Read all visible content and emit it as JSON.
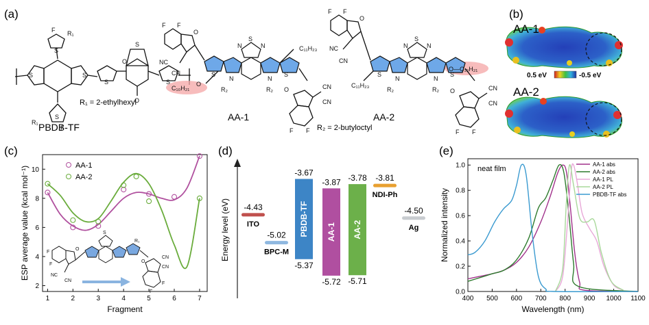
{
  "panels": {
    "a": {
      "letter": "(a)",
      "r1_note": "R₁ = 2-ethylhexyl",
      "r2_note": "R₂ = 2-butyloctyl",
      "compounds": [
        "PBDB-TF",
        "AA-1",
        "AA-2"
      ],
      "atoms": {
        "F": "F",
        "S": "S",
        "O": "O",
        "N": "N",
        "CN": "CN",
        "NC": "NC",
        "R1": "R₁",
        "R2": "R₂",
        "C11": "C₁₁H₂₃",
        "C10": "C₁₀H₂₁",
        "O_C10": "O—C₁₀H₂₁"
      }
    },
    "b": {
      "letter": "(b)",
      "top_label": "AA-1",
      "bottom_label": "AA-2",
      "scale_left": "0.5 eV",
      "scale_right": "-0.5 eV"
    },
    "c": {
      "letter": "(c)",
      "chart_data": {
        "type": "scatter",
        "xlabel": "Fragment",
        "ylabel": "ESP average value (kcal mol⁻¹)",
        "xlim": [
          0.8,
          7.3
        ],
        "ylim": [
          1.6,
          11.0
        ],
        "xticks": [
          1,
          2,
          3,
          4,
          5,
          6,
          7
        ],
        "yticks": [
          2,
          4,
          6,
          8,
          10
        ],
        "legend_position": "top-left",
        "series": [
          {
            "name": "AA-1",
            "color": "#b0509e",
            "points": [
              [
                1,
                8.4
              ],
              [
                2,
                6.0
              ],
              [
                3,
                6.1
              ],
              [
                4,
                8.6
              ],
              [
                5,
                8.3
              ],
              [
                6,
                8.1
              ],
              [
                7,
                10.9
              ]
            ],
            "curve": [
              [
                1,
                8.4
              ],
              [
                1.5,
                6.9
              ],
              [
                2,
                6.1
              ],
              [
                2.5,
                5.8
              ],
              [
                3,
                6.2
              ],
              [
                3.5,
                7.1
              ],
              [
                4,
                8.0
              ],
              [
                4.5,
                8.4
              ],
              [
                5,
                8.3
              ],
              [
                5.5,
                8.0
              ],
              [
                6,
                7.9
              ],
              [
                6.5,
                8.7
              ],
              [
                7,
                10.9
              ]
            ]
          },
          {
            "name": "AA-2",
            "color": "#6aac3c",
            "points": [
              [
                1,
                9.0
              ],
              [
                2,
                6.5
              ],
              [
                3,
                6.4
              ],
              [
                4,
                8.9
              ],
              [
                4.5,
                9.5
              ],
              [
                5,
                7.8
              ],
              [
                7,
                8.0
              ]
            ],
            "curve": [
              [
                1,
                9.0
              ],
              [
                1.5,
                8.2
              ],
              [
                2,
                7.0
              ],
              [
                2.5,
                6.4
              ],
              [
                3,
                6.6
              ],
              [
                3.5,
                7.8
              ],
              [
                4,
                9.1
              ],
              [
                4.5,
                9.7
              ],
              [
                5,
                9.0
              ],
              [
                5.5,
                7.2
              ],
              [
                6,
                4.8
              ],
              [
                6.5,
                3.3
              ],
              [
                7,
                8.0
              ]
            ]
          }
        ]
      }
    },
    "d": {
      "letter": "(d)",
      "chart_data": {
        "type": "bar",
        "ylabel": "Energy level (eV)",
        "ylim": [
          -6.2,
          -3.3
        ],
        "levels": [
          {
            "name": "ITO",
            "value": -4.43,
            "label": "-4.43",
            "color": "#c0504d"
          },
          {
            "name": "BPC-M",
            "value": -5.02,
            "label": "-5.02",
            "color": "#8fb8e0"
          },
          {
            "name": "NDI-Ph",
            "value": -3.81,
            "label": "-3.81",
            "color": "#e8a030"
          },
          {
            "name": "Ag",
            "value": -4.5,
            "label": "-4.50",
            "color": "#c8ccd0"
          }
        ],
        "bars": [
          {
            "name": "PBDB-TF",
            "top": -3.67,
            "bottom": -5.37,
            "top_label": "-3.67",
            "bottom_label": "-5.37",
            "color": "#3d85c6"
          },
          {
            "name": "AA-1",
            "top": -3.87,
            "bottom": -5.72,
            "top_label": "-3.87",
            "bottom_label": "-5.72",
            "color": "#b04fa0"
          },
          {
            "name": "AA-2",
            "top": -3.78,
            "bottom": -5.71,
            "top_label": "-3.78",
            "bottom_label": "-5.71",
            "color": "#6cb04a"
          }
        ]
      }
    },
    "e": {
      "letter": "(e)",
      "chart_data": {
        "type": "line",
        "xlabel": "Wavelength (nm)",
        "ylabel": "Normalized intensity",
        "annotation": "neat film",
        "xlim": [
          400,
          1100
        ],
        "ylim": [
          0,
          1.05
        ],
        "xticks": [
          400,
          500,
          600,
          700,
          800,
          900,
          1000,
          1100
        ],
        "yticks": [
          0.0,
          0.2,
          0.4,
          0.6,
          0.8,
          1.0
        ],
        "legend_position": "top-right",
        "series": [
          {
            "name": "AA-1 abs",
            "color": "#a0308a",
            "dash": "",
            "points": [
              [
                400,
                0.1
              ],
              [
                450,
                0.12
              ],
              [
                500,
                0.14
              ],
              [
                550,
                0.17
              ],
              [
                600,
                0.23
              ],
              [
                650,
                0.35
              ],
              [
                700,
                0.55
              ],
              [
                740,
                0.76
              ],
              [
                770,
                0.94
              ],
              [
                790,
                1.0
              ],
              [
                805,
                0.95
              ],
              [
                820,
                0.7
              ],
              [
                840,
                0.3
              ],
              [
                860,
                0.07
              ],
              [
                880,
                0.01
              ],
              [
                1100,
                0.0
              ]
            ]
          },
          {
            "name": "AA-2 abs",
            "color": "#2d7a2d",
            "dash": "",
            "points": [
              [
                400,
                0.08
              ],
              [
                450,
                0.11
              ],
              [
                500,
                0.14
              ],
              [
                550,
                0.17
              ],
              [
                600,
                0.25
              ],
              [
                650,
                0.42
              ],
              [
                690,
                0.66
              ],
              [
                720,
                0.74
              ],
              [
                750,
                0.88
              ],
              [
                775,
                1.0
              ],
              [
                795,
                0.94
              ],
              [
                815,
                0.62
              ],
              [
                835,
                0.22
              ],
              [
                855,
                0.04
              ],
              [
                1100,
                0.0
              ]
            ]
          },
          {
            "name": "AA-1 PL",
            "color": "#e8a8d8",
            "dash": "",
            "points": [
              [
                760,
                0.0
              ],
              [
                790,
                0.12
              ],
              [
                810,
                0.55
              ],
              [
                825,
                0.95
              ],
              [
                835,
                1.0
              ],
              [
                850,
                0.86
              ],
              [
                870,
                0.62
              ],
              [
                900,
                0.5
              ],
              [
                930,
                0.4
              ],
              [
                960,
                0.2
              ],
              [
                1000,
                0.05
              ],
              [
                1040,
                0.01
              ]
            ]
          },
          {
            "name": "AA-2 PL",
            "color": "#a8d89a",
            "dash": "",
            "points": [
              [
                760,
                0.0
              ],
              [
                790,
                0.18
              ],
              [
                805,
                0.7
              ],
              [
                818,
                1.0
              ],
              [
                835,
                0.84
              ],
              [
                860,
                0.58
              ],
              [
                890,
                0.55
              ],
              [
                920,
                0.56
              ],
              [
                950,
                0.3
              ],
              [
                990,
                0.08
              ],
              [
                1040,
                0.01
              ]
            ]
          },
          {
            "name": "PBDB-TF abs",
            "color": "#3a9ad0",
            "dash": "",
            "points": [
              [
                400,
                0.29
              ],
              [
                430,
                0.31
              ],
              [
                470,
                0.4
              ],
              [
                510,
                0.55
              ],
              [
                545,
                0.65
              ],
              [
                580,
                0.72
              ],
              [
                600,
                0.84
              ],
              [
                620,
                1.0
              ],
              [
                640,
                0.92
              ],
              [
                665,
                0.45
              ],
              [
                690,
                0.12
              ],
              [
                720,
                0.02
              ],
              [
                760,
                0.0
              ],
              [
                1100,
                0.0
              ]
            ]
          }
        ]
      }
    }
  }
}
